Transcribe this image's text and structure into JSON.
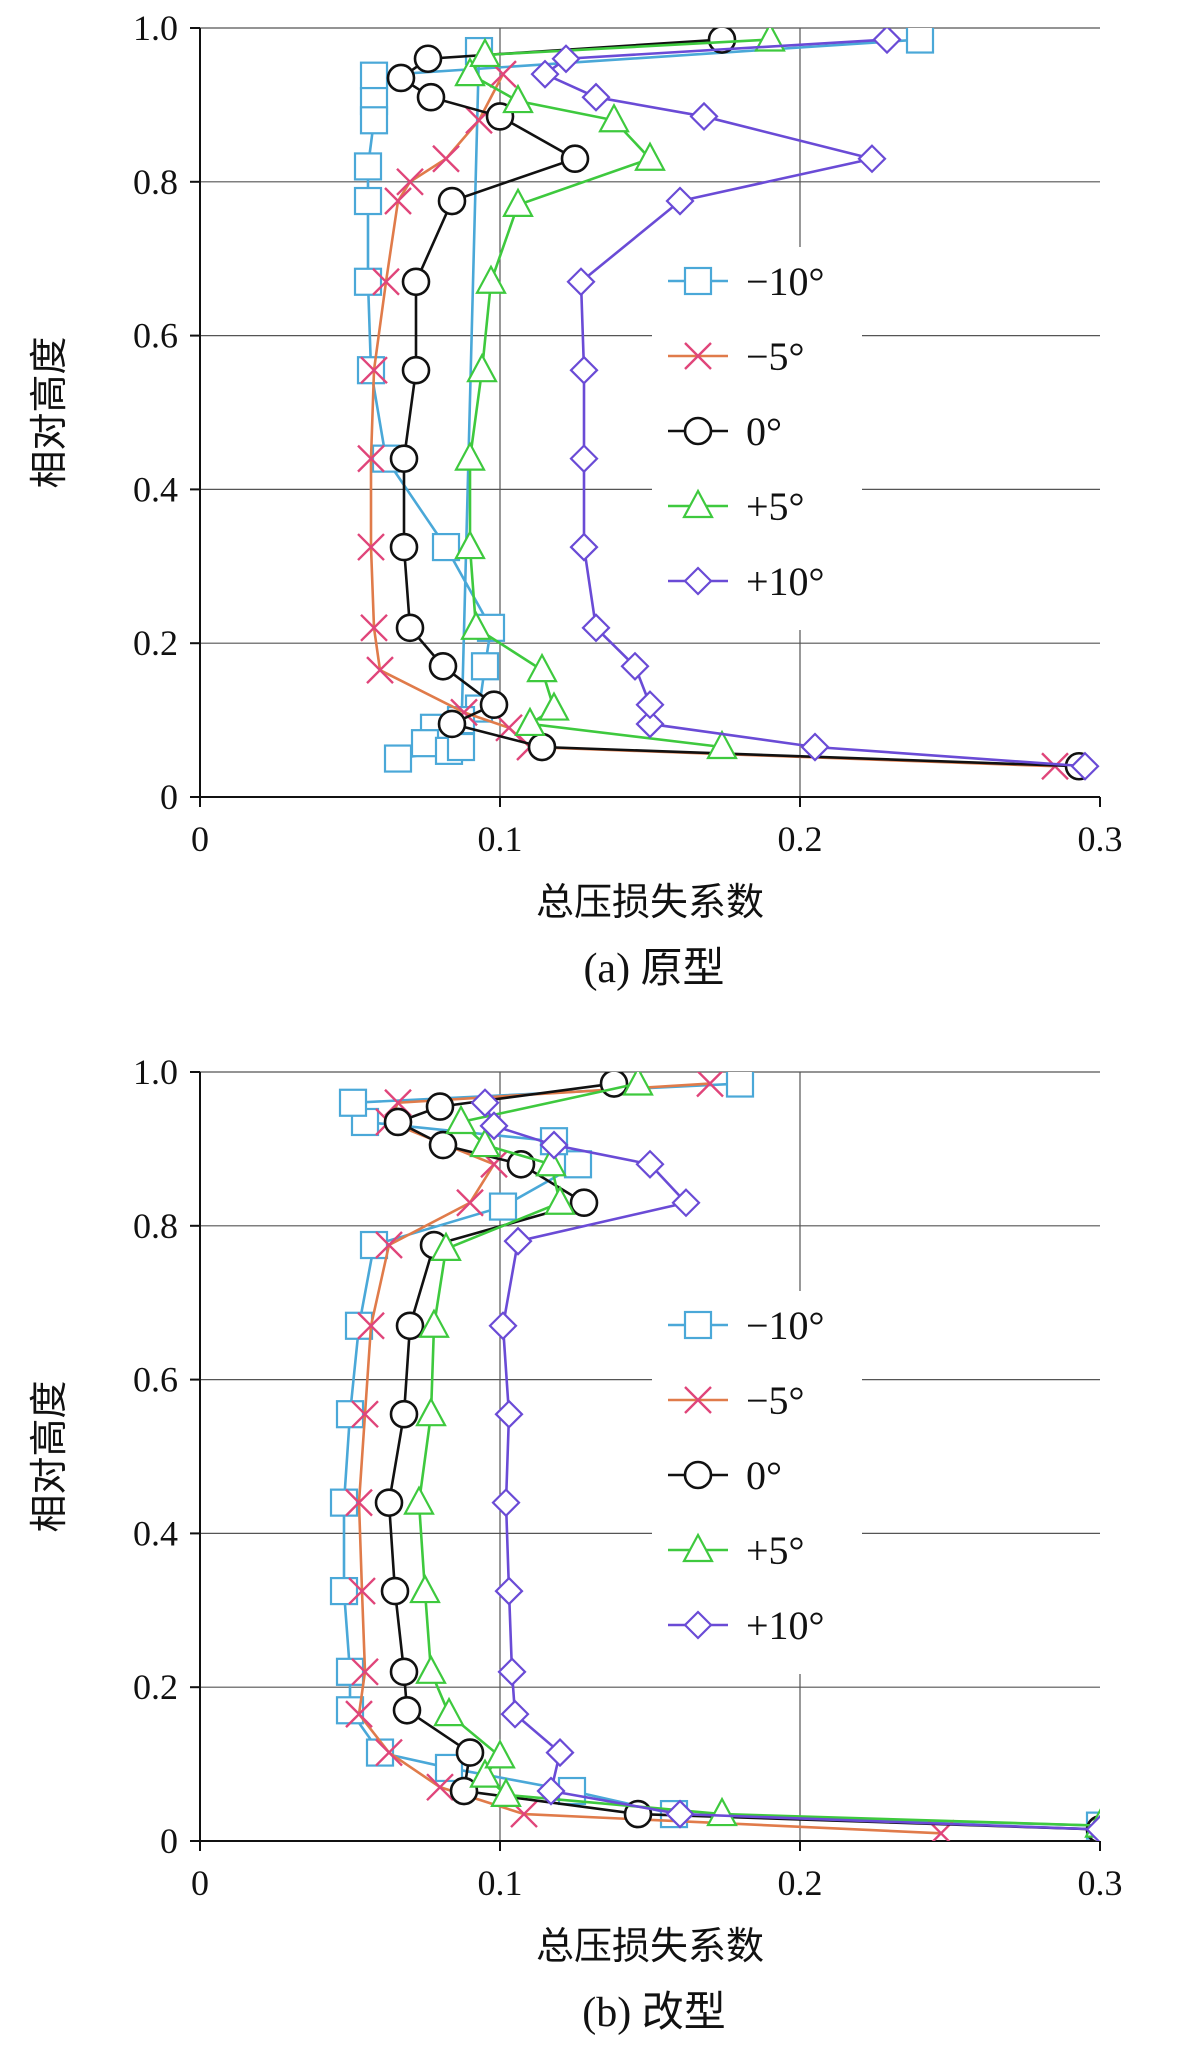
{
  "chart_data": [
    {
      "type": "line",
      "caption": "(a) 原型",
      "xlabel": "总压损失系数",
      "ylabel": "相对高度",
      "xlim": [
        0,
        0.3
      ],
      "ylim": [
        0,
        1.0
      ],
      "xticks": [
        "0",
        "0.1",
        "0.2",
        "0.3"
      ],
      "yticks": [
        "0",
        "0.2",
        "0.4",
        "0.6",
        "0.8",
        "1.0"
      ],
      "grid": true,
      "legend": "center-right",
      "series": [
        {
          "name": "−10°",
          "color": "#4aa8d8",
          "marker": "square",
          "x": [
            0.24,
            0.058,
            0.058,
            0.058,
            0.056,
            0.056,
            0.056,
            0.057,
            0.062,
            0.082,
            0.097,
            0.095,
            0.093,
            0.087,
            0.078,
            0.075,
            0.066,
            0.083,
            0.087,
            0.093
          ],
          "y": [
            0.985,
            0.938,
            0.905,
            0.88,
            0.82,
            0.775,
            0.67,
            0.555,
            0.44,
            0.325,
            0.22,
            0.17,
            0.115,
            0.1,
            0.09,
            0.07,
            0.05,
            0.06,
            0.065,
            0.97
          ]
        },
        {
          "name": "−5°",
          "color": "#e07b4a",
          "marker": "x",
          "x": [
            0.285,
            0.11,
            0.103,
            0.088,
            0.06,
            0.058,
            0.057,
            0.057,
            0.058,
            0.062,
            0.066,
            0.07,
            0.082,
            0.093,
            0.101
          ],
          "y": [
            0.04,
            0.065,
            0.09,
            0.11,
            0.165,
            0.22,
            0.325,
            0.44,
            0.555,
            0.67,
            0.775,
            0.8,
            0.83,
            0.88,
            0.94
          ]
        },
        {
          "name": "0°",
          "color": "#111111",
          "marker": "circle",
          "x": [
            0.293,
            0.114,
            0.084,
            0.098,
            0.081,
            0.07,
            0.068,
            0.068,
            0.072,
            0.072,
            0.084,
            0.125,
            0.1,
            0.077,
            0.067,
            0.076,
            0.174
          ],
          "y": [
            0.04,
            0.065,
            0.095,
            0.12,
            0.17,
            0.22,
            0.325,
            0.44,
            0.555,
            0.67,
            0.775,
            0.83,
            0.885,
            0.91,
            0.935,
            0.96,
            0.985
          ]
        },
        {
          "name": "+5°",
          "color": "#3ec93e",
          "marker": "triangle",
          "x": [
            0.174,
            0.11,
            0.118,
            0.114,
            0.092,
            0.09,
            0.09,
            0.094,
            0.097,
            0.106,
            0.15,
            0.138,
            0.106,
            0.09,
            0.095,
            0.19
          ],
          "y": [
            0.065,
            0.095,
            0.115,
            0.165,
            0.22,
            0.325,
            0.44,
            0.555,
            0.67,
            0.77,
            0.83,
            0.88,
            0.905,
            0.94,
            0.965,
            0.985
          ]
        },
        {
          "name": "+10°",
          "color": "#6a4bd6",
          "marker": "diamond",
          "x": [
            0.295,
            0.205,
            0.15,
            0.15,
            0.145,
            0.132,
            0.128,
            0.128,
            0.128,
            0.127,
            0.16,
            0.224,
            0.168,
            0.132,
            0.115,
            0.122,
            0.229
          ],
          "y": [
            0.04,
            0.065,
            0.095,
            0.12,
            0.17,
            0.22,
            0.325,
            0.44,
            0.555,
            0.67,
            0.775,
            0.83,
            0.885,
            0.91,
            0.94,
            0.96,
            0.985
          ]
        }
      ]
    },
    {
      "type": "line",
      "caption": "(b) 改型",
      "xlabel": "总压损失系数",
      "ylabel": "相对高度",
      "xlim": [
        0,
        0.3
      ],
      "ylim": [
        0,
        1.0
      ],
      "xticks": [
        "0",
        "0.1",
        "0.2",
        "0.3"
      ],
      "yticks": [
        "0",
        "0.2",
        "0.4",
        "0.6",
        "0.8",
        "1.0"
      ],
      "grid": true,
      "legend": "center-right",
      "series": [
        {
          "name": "−10°",
          "color": "#4aa8d8",
          "marker": "square",
          "x": [
            0.3,
            0.158,
            0.124,
            0.083,
            0.06,
            0.05,
            0.05,
            0.048,
            0.048,
            0.05,
            0.053,
            0.058,
            0.101,
            0.126,
            0.118,
            0.055,
            0.051,
            0.18
          ],
          "y": [
            0.02,
            0.035,
            0.065,
            0.095,
            0.115,
            0.17,
            0.22,
            0.325,
            0.44,
            0.555,
            0.67,
            0.775,
            0.825,
            0.88,
            0.91,
            0.935,
            0.96,
            0.985
          ]
        },
        {
          "name": "−5°",
          "color": "#e07b4a",
          "marker": "x",
          "x": [
            0.247,
            0.108,
            0.08,
            0.063,
            0.053,
            0.055,
            0.054,
            0.053,
            0.055,
            0.057,
            0.063,
            0.09,
            0.098,
            0.063,
            0.066,
            0.17
          ],
          "y": [
            0.01,
            0.035,
            0.07,
            0.115,
            0.165,
            0.22,
            0.325,
            0.44,
            0.555,
            0.67,
            0.775,
            0.83,
            0.88,
            0.935,
            0.96,
            0.985
          ]
        },
        {
          "name": "0°",
          "color": "#111111",
          "marker": "circle",
          "x": [
            0.3,
            0.146,
            0.088,
            0.09,
            0.069,
            0.068,
            0.065,
            0.063,
            0.068,
            0.07,
            0.078,
            0.128,
            0.107,
            0.081,
            0.066,
            0.08,
            0.138
          ],
          "y": [
            0.015,
            0.035,
            0.065,
            0.115,
            0.17,
            0.22,
            0.325,
            0.44,
            0.555,
            0.67,
            0.775,
            0.83,
            0.88,
            0.905,
            0.935,
            0.955,
            0.985
          ]
        },
        {
          "name": "+5°",
          "color": "#3ec93e",
          "marker": "triangle",
          "x": [
            0.3,
            0.174,
            0.102,
            0.095,
            0.1,
            0.083,
            0.077,
            0.075,
            0.073,
            0.077,
            0.078,
            0.082,
            0.12,
            0.117,
            0.095,
            0.087,
            0.146
          ],
          "y": [
            0.02,
            0.035,
            0.06,
            0.085,
            0.11,
            0.165,
            0.22,
            0.325,
            0.44,
            0.555,
            0.67,
            0.77,
            0.83,
            0.88,
            0.905,
            0.935,
            0.985
          ]
        },
        {
          "name": "+10°",
          "color": "#6a4bd6",
          "marker": "diamond",
          "x": [
            0.3,
            0.16,
            0.117,
            0.12,
            0.105,
            0.104,
            0.103,
            0.102,
            0.103,
            0.101,
            0.106,
            0.162,
            0.15,
            0.118,
            0.098,
            0.095
          ],
          "y": [
            0.015,
            0.035,
            0.065,
            0.115,
            0.165,
            0.22,
            0.325,
            0.44,
            0.555,
            0.67,
            0.78,
            0.83,
            0.88,
            0.905,
            0.93,
            0.96
          ]
        }
      ]
    }
  ]
}
